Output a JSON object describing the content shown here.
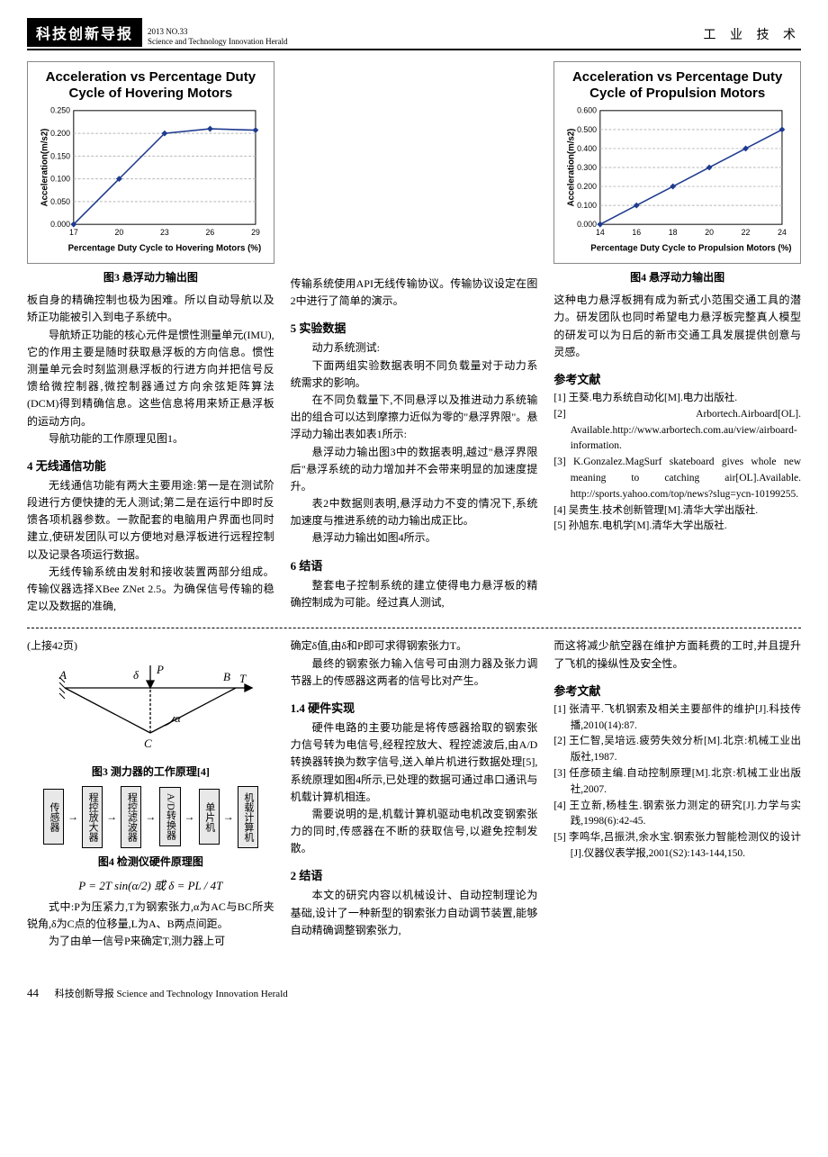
{
  "header": {
    "badge": "科技创新导报",
    "issue": "2013 NO.33",
    "sub_en": "Science and Technology Innovation Herald",
    "category": "工 业 技 术"
  },
  "chart_hover": {
    "type": "line",
    "title_l1": "Acceleration vs Percentage Duty",
    "title_l2": "Cycle of Hovering Motors",
    "x_label": "Percentage Duty Cycle to Hovering Motors (%)",
    "y_label": "Acceleration(m/s2)",
    "x_ticks": [
      17,
      20,
      23,
      26,
      29
    ],
    "y_ticks": [
      0.0,
      0.05,
      0.1,
      0.15,
      0.2,
      0.25
    ],
    "ylim": [
      0,
      0.25
    ],
    "xlim": [
      17,
      29
    ],
    "points": [
      {
        "x": 17,
        "y": 0.0
      },
      {
        "x": 20,
        "y": 0.1
      },
      {
        "x": 23,
        "y": 0.2
      },
      {
        "x": 26,
        "y": 0.21
      },
      {
        "x": 29,
        "y": 0.207
      }
    ],
    "line_color": "#1f3b8f",
    "marker_color": "#1f3b8f",
    "grid_color": "#b8b8b8",
    "background": "#ffffff",
    "caption": "图3 悬浮动力输出图"
  },
  "chart_prop": {
    "type": "line",
    "title_l1": "Acceleration vs Percentage Duty",
    "title_l2": "Cycle of Propulsion Motors",
    "x_label": "Percentage Duty Cycle to Propulsion Motors (%)",
    "y_label": "Acceleration(m/s2)",
    "x_ticks": [
      14,
      16,
      18,
      20,
      22,
      24
    ],
    "y_ticks": [
      0.0,
      0.1,
      0.2,
      0.3,
      0.4,
      0.5,
      0.6
    ],
    "ylim": [
      0,
      0.6
    ],
    "xlim": [
      14,
      24
    ],
    "points": [
      {
        "x": 14,
        "y": 0.0
      },
      {
        "x": 16,
        "y": 0.1
      },
      {
        "x": 18,
        "y": 0.2
      },
      {
        "x": 20,
        "y": 0.3
      },
      {
        "x": 22,
        "y": 0.4
      },
      {
        "x": 24,
        "y": 0.5
      }
    ],
    "line_color": "#1f3b8f",
    "marker_color": "#1f3b8f",
    "grid_color": "#b8b8b8",
    "background": "#ffffff",
    "caption": "图4 悬浮动力输出图"
  },
  "col1": {
    "p1": "板自身的精确控制也极为困难。所以自动导航以及矫正功能被引入到电子系统中。",
    "p2": "导航矫正功能的核心元件是惯性测量单元(IMU),它的作用主要是随时获取悬浮板的方向信息。惯性测量单元会时刻监测悬浮板的行进方向并把信号反馈给微控制器,微控制器通过方向余弦矩阵算法(DCM)得到精确信息。这些信息将用来矫正悬浮板的运动方向。",
    "p3": "导航功能的工作原理见图1。",
    "sec4": "4 无线通信功能",
    "p4": "无线通信功能有两大主要用途:第一是在测试阶段进行方便快捷的无人测试;第二是在运行中即时反馈各项机器参数。一款配套的电脑用户界面也同时建立,使研发团队可以方便地对悬浮板进行远程控制以及记录各项运行数据。",
    "p5": "无线传输系统由发射和接收装置两部分组成。传输仪器选择XBee ZNet 2.5。为确保信号传输的稳定以及数据的准确,"
  },
  "col2": {
    "p1": "传输系统使用API无线传输协议。传输协议设定在图2中进行了简单的演示。",
    "sec5": "5 实验数据",
    "p2": "动力系统测试:",
    "p3": "下面两组实验数据表明不同负载量对于动力系统需求的影响。",
    "p4": "在不同负载量下,不同悬浮以及推进动力系统输出的组合可以达到摩擦力近似为零的\"悬浮界限\"。悬浮动力输出表如表1所示:",
    "p5": "悬浮动力输出图3中的数据表明,越过\"悬浮界限后\"悬浮系统的动力增加并不会带来明显的加速度提升。",
    "p6": "表2中数据则表明,悬浮动力不变的情况下,系统加速度与推进系统的动力输出成正比。",
    "p7": "悬浮动力输出如图4所示。",
    "sec6": "6 结语",
    "p8": "整套电子控制系统的建立使得电力悬浮板的精确控制成为可能。经过真人测试,"
  },
  "col3": {
    "p1": "这种电力悬浮板拥有成为新式小范围交通工具的潜力。研发团队也同时希望电力悬浮板完整真人模型的研发可以为日后的新市交通工具发展提供创意与灵感。",
    "ref_h": "参考文献",
    "refs": [
      "[1] 王葵.电力系统自动化[M].电力出版社.",
      "[2] Arbortech.Airboard[OL]. Available.http://www.arbortech.com.au/view/airboard-information.",
      "[3] K.Gonzalez.MagSurf skateboard gives whole new meaning to catching air[OL].Available. http://sports.yahoo.com/top/news?slug=ycn-10199255.",
      "[4] 吴贵生.技术创新管理[M].清华大学出版社.",
      "[5] 孙旭东.电机学[M].清华大学出版社."
    ]
  },
  "lower": {
    "cont": "(上接42页)",
    "fig3_cap": "图3 测力器的工作原理[4]",
    "flow_boxes": [
      "传感器",
      "程控放大器",
      "程控滤波器",
      "A/D转换器",
      "单片机",
      "机载计算机"
    ],
    "fig4_cap": "图4 检测仪硬件原理图",
    "eq": "P = 2T sin(α/2)  或  δ = PL / 4T",
    "pA": "式中:P为压紧力,T为钢索张力,α为AC与BC所夹锐角,δ为C点的位移量,L为A、B两点间距。",
    "pB": "为了由单一信号P来确定T,测力器上可",
    "c2_p1": "确定δ值,由δ和P即可求得钢索张力T。",
    "c2_p2": "最终的钢索张力输入信号可由测力器及张力调节器上的传感器这两者的信号比对产生。",
    "c2_sec": "1.4 硬件实现",
    "c2_p3": "硬件电路的主要功能是将传感器拾取的钢索张力信号转为电信号,经程控放大、程控滤波后,由A/D转换器转换为数字信号,送入单片机进行数据处理[5],系统原理如图4所示,已处理的数据可通过串口通讯与机载计算机相连。",
    "c2_p4": "需要说明的是,机载计算机驱动电机改变钢索张力的同时,传感器在不断的获取信号,以避免控制发散。",
    "c2_sec2": "2 结语",
    "c2_p5": "本文的研究内容以机械设计、自动控制理论为基础,设计了一种新型的钢索张力自动调节装置,能够自动精确调整钢索张力,",
    "c3_p1": "而这将减少航空器在维护方面耗费的工时,并且提升了飞机的操纵性及安全性。",
    "c3_refh": "参考文献",
    "c3_refs": [
      "[1] 张清平.飞机钢索及相关主要部件的维护[J].科技传播,2010(14):87.",
      "[2] 王仁智,吴培远.疲劳失效分析[M].北京:机械工业出版社,1987.",
      "[3] 任彦硕主编.自动控制原理[M].北京:机械工业出版社,2007.",
      "[4] 王立新,杨桂生.钢索张力测定的研究[J].力学与实践,1998(6):42-45.",
      "[5] 李鸣华,吕振洪,余水宝.钢索张力智能检测仪的设计[J].仪器仪表学报,2001(S2):143-144,150."
    ]
  },
  "footer": {
    "page": "44",
    "text": "科技创新导报 Science and Technology Innovation Herald"
  },
  "diagram3": {
    "labels": {
      "A": "A",
      "B": "B",
      "C": "C",
      "P": "P",
      "T": "T",
      "delta": "δ",
      "alpha": "α"
    }
  }
}
